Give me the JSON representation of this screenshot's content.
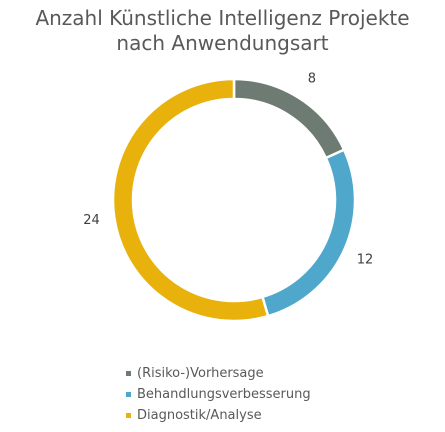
{
  "chart_data": {
    "type": "pie",
    "title": [
      "Anzahl Künstliche Intelligenz Projekte",
      "nach Anwendungsart"
    ],
    "categories": [
      "(Risiko-)Vorhersage",
      "Behandlungsverbesserung",
      "Diagnostik/Analyse"
    ],
    "values": [
      8,
      12,
      24
    ],
    "colors": [
      "#6d7b73",
      "#4fa8cc",
      "#e8b10c"
    ],
    "data_labels": [
      "8",
      "12",
      "24"
    ],
    "legend_position": "bottom"
  }
}
